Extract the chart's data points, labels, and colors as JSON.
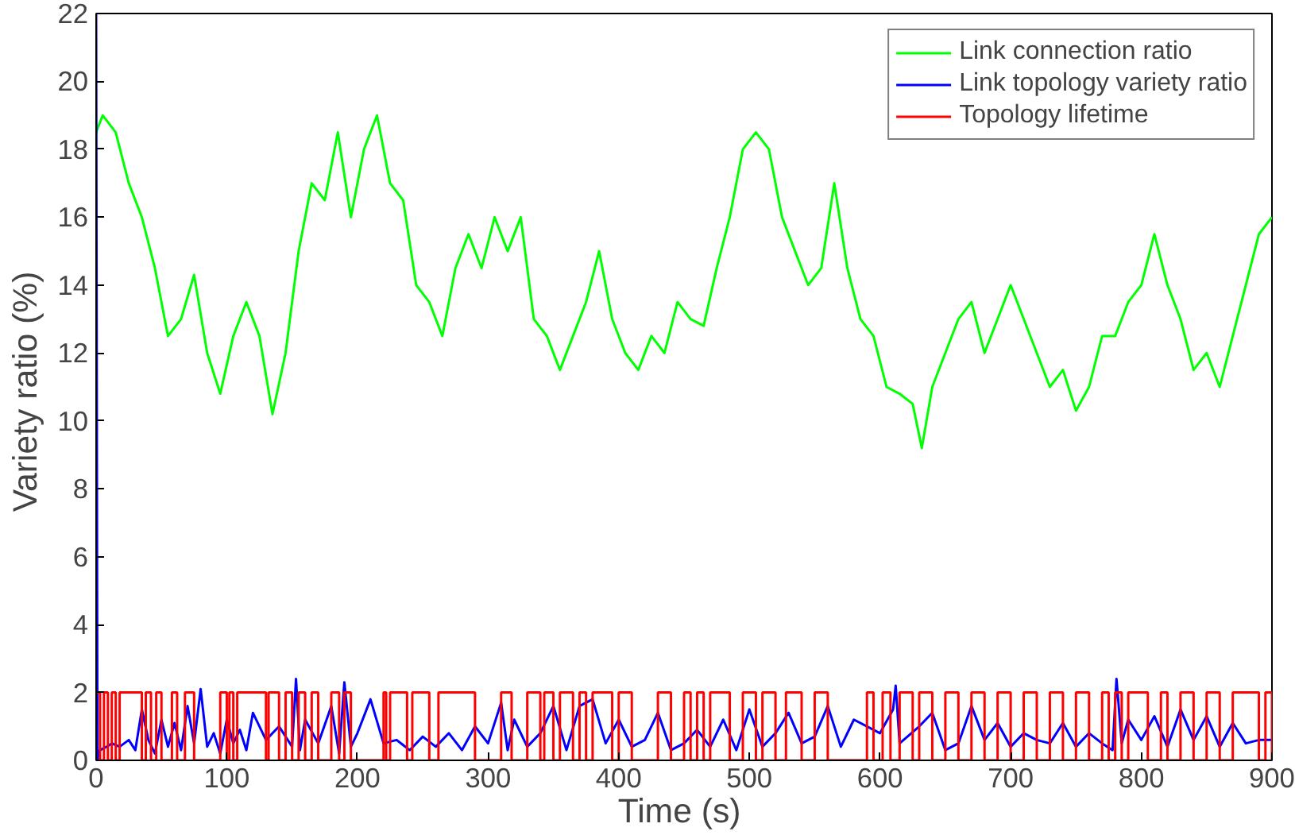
{
  "chart_data": {
    "type": "line",
    "xlabel": "Time  (s)",
    "ylabel": "Variety ratio  (%)",
    "xlim": [
      0,
      900
    ],
    "ylim": [
      0,
      22
    ],
    "xticks": [
      0,
      100,
      200,
      300,
      400,
      500,
      600,
      700,
      800,
      900
    ],
    "yticks": [
      0,
      2,
      4,
      6,
      8,
      10,
      12,
      14,
      16,
      18,
      20,
      22
    ],
    "grid": false,
    "legend": "top right",
    "series": [
      {
        "name": "Link connection ratio",
        "color": "#00ff00",
        "x": [
          0,
          5,
          15,
          25,
          35,
          45,
          55,
          65,
          75,
          85,
          95,
          105,
          115,
          125,
          135,
          145,
          155,
          165,
          175,
          185,
          195,
          205,
          215,
          225,
          235,
          245,
          255,
          265,
          275,
          285,
          295,
          305,
          315,
          325,
          335,
          345,
          355,
          365,
          375,
          385,
          395,
          405,
          415,
          425,
          435,
          445,
          455,
          465,
          475,
          485,
          495,
          505,
          515,
          525,
          535,
          545,
          555,
          565,
          575,
          585,
          595,
          605,
          615,
          625,
          632,
          640,
          650,
          660,
          670,
          680,
          690,
          700,
          710,
          720,
          730,
          740,
          750,
          760,
          770,
          780,
          790,
          800,
          810,
          820,
          830,
          840,
          850,
          860,
          870,
          880,
          890,
          900
        ],
        "values": [
          18.5,
          19,
          18.5,
          17,
          16,
          14.5,
          12.5,
          13,
          14.3,
          12,
          10.8,
          12.5,
          13.5,
          12.5,
          10.2,
          12,
          15,
          17,
          16.5,
          18.5,
          16,
          18,
          19,
          17,
          16.5,
          14,
          13.5,
          12.5,
          14.5,
          15.5,
          14.5,
          16,
          15,
          16,
          13,
          12.5,
          11.5,
          12.5,
          13.5,
          15,
          13,
          12,
          11.5,
          12.5,
          12,
          13.5,
          13,
          12.8,
          14.5,
          16,
          18,
          18.5,
          18,
          16,
          15,
          14,
          14.5,
          17,
          14.5,
          13,
          12.5,
          11,
          10.8,
          10.5,
          9.2,
          11,
          12,
          13,
          13.5,
          12,
          13,
          14,
          13,
          12,
          11,
          11.5,
          10.3,
          11,
          12.5,
          12.5,
          13.5,
          14,
          15.5,
          14,
          13,
          11.5,
          12,
          11,
          12.5,
          14,
          15.5,
          16
        ]
      },
      {
        "name": "Link topology variety ratio",
        "color": "#0000ff",
        "x": [
          0,
          1,
          3,
          8,
          12,
          18,
          25,
          30,
          35,
          40,
          45,
          50,
          55,
          60,
          65,
          70,
          75,
          80,
          85,
          90,
          95,
          100,
          105,
          110,
          115,
          120,
          130,
          140,
          150,
          153,
          156,
          160,
          170,
          180,
          186,
          190,
          195,
          200,
          210,
          220,
          230,
          240,
          250,
          260,
          270,
          280,
          290,
          300,
          310,
          315,
          320,
          330,
          340,
          350,
          360,
          370,
          380,
          390,
          400,
          410,
          420,
          430,
          440,
          450,
          460,
          470,
          480,
          490,
          500,
          510,
          520,
          530,
          540,
          550,
          560,
          570,
          580,
          600,
          610,
          612,
          615,
          630,
          640,
          650,
          660,
          670,
          680,
          690,
          700,
          710,
          720,
          730,
          740,
          750,
          760,
          770,
          778,
          781,
          785,
          790,
          800,
          810,
          820,
          830,
          840,
          850,
          860,
          870,
          880,
          890,
          900
        ],
        "values": [
          22,
          0,
          0.3,
          0.4,
          0.5,
          0.4,
          0.6,
          0.3,
          1.5,
          0.6,
          0.2,
          1.2,
          0.4,
          1.1,
          0.3,
          1.6,
          0.5,
          2.1,
          0.4,
          0.8,
          0.2,
          1.2,
          0.5,
          0.9,
          0.3,
          1.4,
          0.6,
          1.0,
          0.4,
          2.4,
          0.3,
          1.2,
          0.5,
          1.6,
          0.2,
          2.3,
          0.4,
          0.8,
          1.8,
          0.5,
          0.6,
          0.3,
          0.7,
          0.4,
          0.8,
          0.3,
          1.0,
          0.5,
          1.7,
          0.3,
          1.2,
          0.4,
          0.8,
          1.6,
          0.3,
          1.6,
          1.8,
          0.5,
          1.2,
          0.4,
          0.6,
          1.4,
          0.3,
          0.5,
          0.9,
          0.4,
          1.2,
          0.3,
          1.5,
          0.4,
          0.8,
          1.4,
          0.5,
          0.7,
          1.6,
          0.4,
          1.2,
          0.8,
          1.5,
          2.2,
          0.5,
          1.0,
          1.4,
          0.3,
          0.5,
          1.6,
          0.6,
          1.1,
          0.4,
          0.8,
          0.6,
          0.5,
          1.1,
          0.4,
          0.8,
          0.5,
          0.3,
          2.4,
          0.5,
          1.2,
          0.6,
          1.3,
          0.4,
          1.5,
          0.6,
          1.3,
          0.4,
          1.1,
          0.5,
          0.6,
          0.6
        ]
      },
      {
        "name": "Topology lifetime",
        "color": "#ff0000",
        "type": "step",
        "x": [
          0,
          3,
          6,
          9,
          12,
          15,
          18,
          35,
          38,
          42,
          46,
          50,
          58,
          62,
          68,
          75,
          95,
          100,
          102,
          105,
          108,
          130,
          132,
          140,
          145,
          150,
          155,
          160,
          165,
          170,
          180,
          186,
          190,
          195,
          220,
          222,
          225,
          238,
          242,
          255,
          262,
          290,
          310,
          318,
          330,
          340,
          343,
          350,
          355,
          365,
          370,
          375,
          380,
          395,
          400,
          410,
          430,
          440,
          450,
          455,
          460,
          465,
          470,
          485,
          495,
          505,
          510,
          520,
          528,
          540,
          550,
          560,
          590,
          595,
          602,
          608,
          615,
          625,
          630,
          640,
          650,
          660,
          670,
          680,
          690,
          700,
          710,
          720,
          730,
          740,
          750,
          760,
          770,
          775,
          780,
          785,
          790,
          805,
          815,
          820,
          830,
          840,
          850,
          860,
          870,
          890,
          895,
          900
        ],
        "values": [
          2,
          0,
          2,
          0,
          2,
          0,
          2,
          0,
          2,
          0,
          2,
          0,
          2,
          0,
          2,
          0,
          2,
          0,
          2,
          0,
          2,
          0,
          2,
          0,
          2,
          0,
          2,
          0,
          2,
          0,
          2,
          0,
          2,
          0,
          2,
          0,
          2,
          0,
          2,
          0,
          2,
          0,
          2,
          0,
          2,
          0,
          2,
          0,
          2,
          0,
          2,
          0,
          2,
          0,
          2,
          0,
          2,
          0,
          2,
          0,
          2,
          0,
          2,
          0,
          2,
          0,
          2,
          0,
          2,
          0,
          2,
          0,
          2,
          0,
          2,
          0,
          2,
          0,
          2,
          0,
          2,
          0,
          2,
          0,
          2,
          0,
          2,
          0,
          2,
          0,
          2,
          0,
          2,
          0,
          2,
          0,
          2,
          0,
          2,
          0,
          2,
          0,
          2,
          0,
          2,
          0,
          2,
          0
        ]
      }
    ]
  }
}
